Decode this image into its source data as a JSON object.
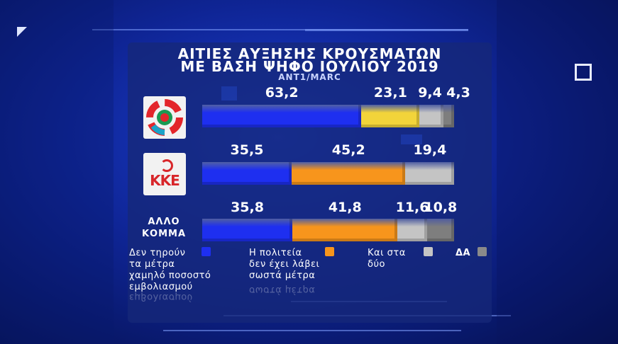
{
  "chart_data": {
    "type": "bar",
    "orientation": "horizontal-stacked",
    "title": "ΑΙΤΙΕΣ ΑΥΞΗΣΗΣ ΚΡΟΥΣΜΑΤΩΝ",
    "title_line2": "ΜΕ ΒΑΣΗ ΨΗΦΟ ΙΟΥΛΙΟΥ 2019",
    "subtitle": "ANT1/MARC",
    "categories": [
      "",
      "KKE",
      "ΑΛΛΟ ΚΟΜΜΑ"
    ],
    "category_label_lines": [
      [],
      [],
      [
        "ΑΛΛΟ",
        "ΚΟΜΜΑ"
      ]
    ],
    "series": [
      {
        "name": "Δεν τηρούν τα μέτρα χαμηλό ποσοστό εμβολιασμού",
        "values": [
          63.2,
          35.5,
          35.8
        ],
        "labels": [
          "63,2",
          "35,5",
          "35,8"
        ],
        "color": "#1e2ff0"
      },
      {
        "name": "Η πολιτεία δεν έχει λάβει σωστά μέτρα",
        "values": [
          23.1,
          45.2,
          41.8
        ],
        "labels": [
          "23,1",
          "45,2",
          "41,8"
        ],
        "color_row1": "#f2d43a",
        "color": "#f7951c"
      },
      {
        "name": "Και στα δύο",
        "values": [
          9.4,
          19.4,
          11.6
        ],
        "labels": [
          "9,4",
          "19,4",
          "11,6"
        ],
        "color": "#c4c4c4"
      },
      {
        "name": "ΔΑ",
        "values": [
          4.3,
          0,
          10.8
        ],
        "labels": [
          "4,3",
          "",
          "10,8"
        ],
        "color": "#7e7e7e"
      }
    ],
    "xlim": [
      0,
      100
    ],
    "legend": [
      {
        "lines": [
          "Δεν τηρούν",
          "τα μέτρα",
          "χαμηλό ποσοστό",
          "εμβολιασμού"
        ],
        "color": "#1e2ff0"
      },
      {
        "lines": [
          "Η πολιτεία",
          "δεν έχει λάβει",
          "σωστά μέτρα"
        ],
        "color": "#f7951c"
      },
      {
        "lines": [
          "Και στα",
          "δύο"
        ],
        "color": "#c4c4c4"
      },
      {
        "lines": [
          "ΔΑ"
        ],
        "color": "#8a8a8a"
      }
    ],
    "logos": {
      "kke_text": "KKE"
    }
  }
}
